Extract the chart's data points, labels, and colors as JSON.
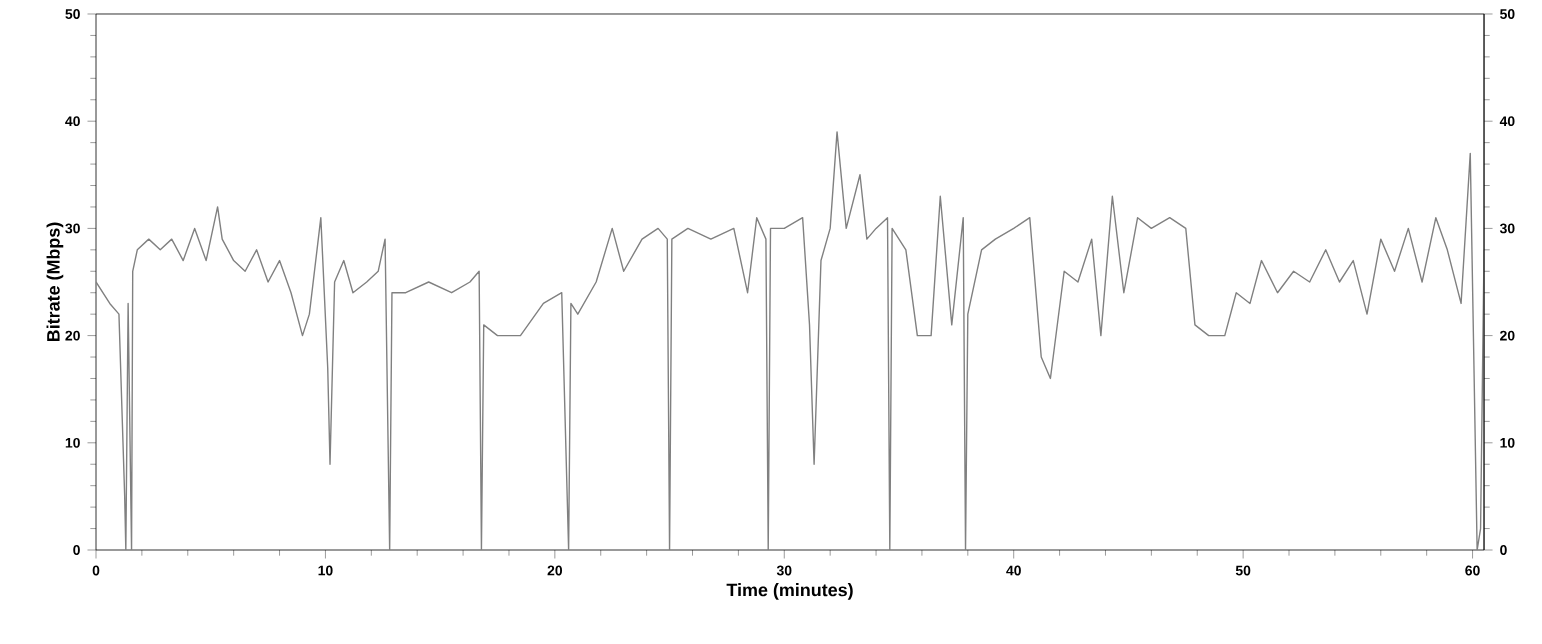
{
  "chart_data": {
    "type": "line",
    "xlabel": "Time (minutes)",
    "ylabel": "Bitrate (Mbps)",
    "color": "#808080",
    "line_style": "solid",
    "xlim": [
      0,
      60.5
    ],
    "ylim": [
      0,
      50
    ],
    "xticks": [
      0,
      10,
      20,
      30,
      40,
      50,
      60
    ],
    "yticks": [
      0,
      10,
      20,
      30,
      40,
      50
    ],
    "y2lim": [
      0,
      50
    ],
    "y2ticks": [
      0,
      10,
      20,
      30,
      40,
      50
    ],
    "x": [
      0,
      0.3,
      0.6,
      1.0,
      1.25,
      1.3,
      1.4,
      1.55,
      1.6,
      1.8,
      2.3,
      2.8,
      3.3,
      3.8,
      4.3,
      4.8,
      5.3,
      5.5,
      6.0,
      6.5,
      7.0,
      7.5,
      8.0,
      8.5,
      9.0,
      9.3,
      9.8,
      10.1,
      10.2,
      10.4,
      10.8,
      11.2,
      11.8,
      12.3,
      12.6,
      12.8,
      12.9,
      13.5,
      14.5,
      15.5,
      16.3,
      16.7,
      16.8,
      16.9,
      17.5,
      18.5,
      19.5,
      20.3,
      20.6,
      20.7,
      21.0,
      21.8,
      22.5,
      23.0,
      23.8,
      24.5,
      24.9,
      25.0,
      25.1,
      25.8,
      26.8,
      27.8,
      28.4,
      28.8,
      29.2,
      29.3,
      29.4,
      30.0,
      30.8,
      31.1,
      31.3,
      31.6,
      32.0,
      32.3,
      32.7,
      33.3,
      33.6,
      34.0,
      34.5,
      34.6,
      34.7,
      35.3,
      35.8,
      36.4,
      36.8,
      37.3,
      37.8,
      37.9,
      38.0,
      38.6,
      39.2,
      40.0,
      40.7,
      41.2,
      41.6,
      42.2,
      42.8,
      43.4,
      43.8,
      44.3,
      44.8,
      45.4,
      46.0,
      46.8,
      47.5,
      47.9,
      48.5,
      49.2,
      49.7,
      50.3,
      50.8,
      51.5,
      52.2,
      52.9,
      53.6,
      54.2,
      54.8,
      55.4,
      56.0,
      56.6,
      57.2,
      57.8,
      58.4,
      58.9,
      59.5,
      59.9,
      60.2,
      60.35,
      60.5
    ],
    "values": [
      25,
      24,
      23,
      22,
      5,
      0,
      23,
      0,
      26,
      28,
      29,
      28,
      29,
      27,
      30,
      27,
      32,
      29,
      27,
      26,
      28,
      25,
      27,
      24,
      20,
      22,
      31,
      17,
      8,
      25,
      27,
      24,
      25,
      26,
      29,
      0,
      24,
      24,
      25,
      24,
      25,
      26,
      0,
      21,
      20,
      20,
      23,
      24,
      0,
      23,
      22,
      25,
      30,
      26,
      29,
      30,
      29,
      0,
      29,
      30,
      29,
      30,
      24,
      31,
      29,
      0,
      30,
      30,
      31,
      21,
      8,
      27,
      30,
      39,
      30,
      35,
      29,
      30,
      31,
      0,
      30,
      28,
      20,
      20,
      33,
      21,
      31,
      0,
      22,
      28,
      29,
      30,
      31,
      18,
      16,
      26,
      25,
      29,
      20,
      33,
      24,
      31,
      30,
      31,
      30,
      21,
      20,
      20,
      24,
      23,
      27,
      24,
      26,
      25,
      28,
      25,
      27,
      22,
      29,
      26,
      30,
      25,
      31,
      28,
      23,
      37,
      0,
      2,
      28
    ]
  }
}
